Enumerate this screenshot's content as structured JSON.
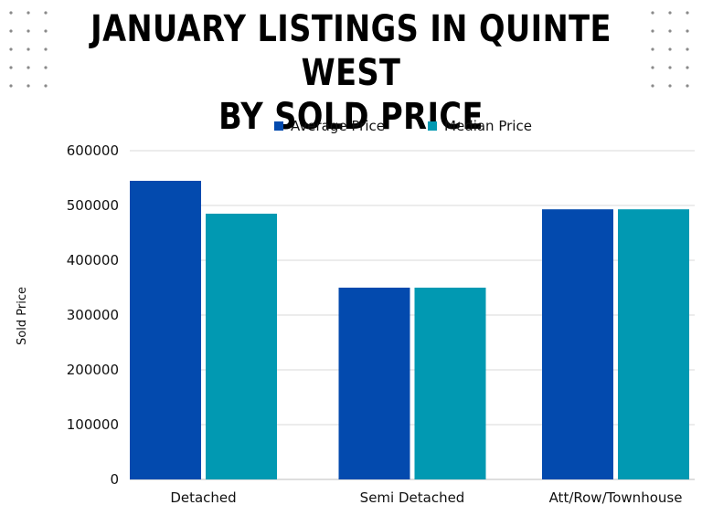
{
  "title_line1": "JANUARY LISTINGS IN QUINTE WEST",
  "title_line2": "BY SOLD PRICE",
  "colors": {
    "average": "#034aae",
    "median": "#0199b2",
    "grid": "#d9d9d9",
    "dots": "#8a8a8a"
  },
  "chart_data": {
    "type": "bar",
    "categories": [
      "Detached",
      "Semi Detached",
      "Att/Row/Townhouse"
    ],
    "series": [
      {
        "name": "Average Price",
        "values": [
          545000,
          350000,
          493000
        ]
      },
      {
        "name": "Median Price",
        "values": [
          485000,
          350000,
          493000
        ]
      }
    ],
    "ylabel": "Sold Price",
    "ylim": [
      0,
      600000
    ],
    "yticks": [
      0,
      100000,
      200000,
      300000,
      400000,
      500000,
      600000
    ],
    "grid": true,
    "legend": "top-center"
  }
}
